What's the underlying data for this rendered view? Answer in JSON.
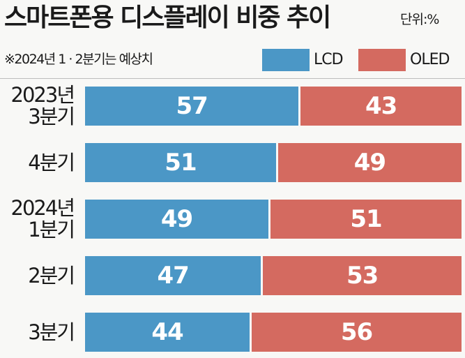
{
  "title": "스마트폰용 디스플레이 비중 추이",
  "unit": "단위:%",
  "note": "※2024년 1 · 2분기는 예상치",
  "colors": {
    "lcd": "#4b97c6",
    "oled": "#d46a60"
  },
  "chart_data": {
    "type": "bar",
    "orientation": "horizontal",
    "stacked": true,
    "title": "스마트폰용 디스플레이 비중 추이",
    "unit": "%",
    "categories": [
      [
        "2023년",
        "3분기"
      ],
      [
        "4분기"
      ],
      [
        "2024년",
        "1분기"
      ],
      [
        "2분기"
      ],
      [
        "3분기"
      ]
    ],
    "series": [
      {
        "name": "LCD",
        "values": [
          57,
          51,
          49,
          47,
          44
        ]
      },
      {
        "name": "OLED",
        "values": [
          43,
          49,
          51,
          53,
          56
        ]
      }
    ],
    "xlim": [
      0,
      100
    ],
    "legend": "top-right"
  }
}
